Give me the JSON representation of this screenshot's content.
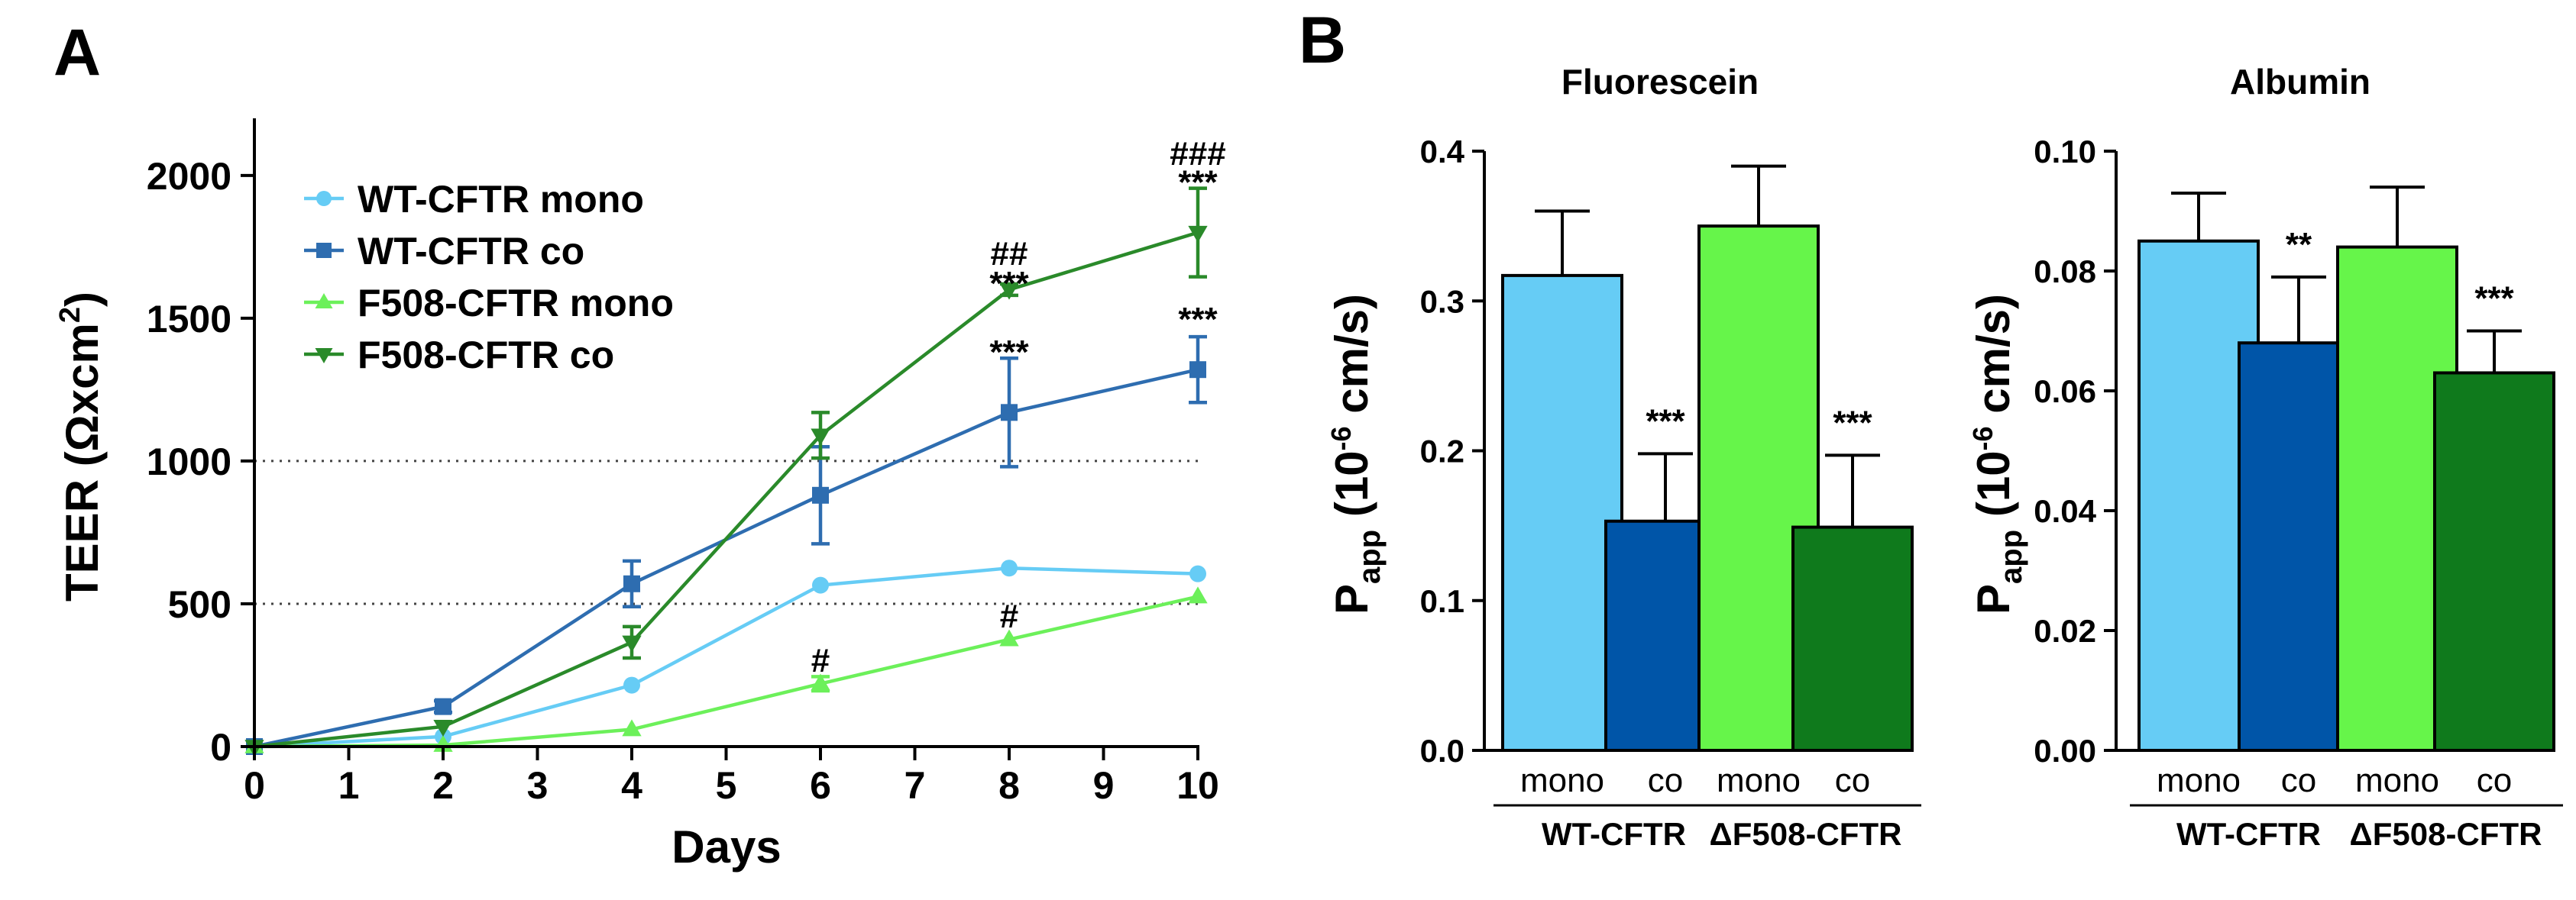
{
  "panels": {
    "a": "A",
    "b": "B"
  },
  "chart_data": [
    {
      "type": "line",
      "panel": "A",
      "xlabel": "Days",
      "ylabel_main": "TEER (",
      "ylabel_unit": "Ωxcm",
      "ylabel_sup": "2",
      "ylabel_close": ")",
      "xlim": [
        0,
        10
      ],
      "ylim": [
        0,
        2200
      ],
      "xticks": [
        "0",
        "1",
        "2",
        "3",
        "4",
        "5",
        "6",
        "7",
        "8",
        "9",
        "10"
      ],
      "yticks": [
        "0",
        "500",
        "1000",
        "1500",
        "2000"
      ],
      "reference_lines": [
        500,
        1000
      ],
      "x": [
        0,
        2,
        4,
        6,
        8,
        10
      ],
      "series": [
        {
          "name": "WT-CFTR mono",
          "color": "#66ccf5",
          "marker": "circle",
          "values": [
            0,
            35,
            215,
            565,
            625,
            605
          ],
          "errors": [
            0,
            0,
            0,
            0,
            0,
            0
          ]
        },
        {
          "name": "WT-CFTR co",
          "color": "#2e6db0",
          "marker": "square",
          "values": [
            0,
            140,
            570,
            880,
            1170,
            1320
          ],
          "errors": [
            0,
            20,
            80,
            170,
            190,
            115
          ]
        },
        {
          "name": "F508-CFTR mono",
          "color": "#6cf05a",
          "marker": "triangle-up",
          "values": [
            0,
            5,
            60,
            220,
            375,
            525
          ],
          "errors": [
            0,
            0,
            0,
            25,
            0,
            0
          ]
        },
        {
          "name": "F508-CFTR co",
          "color": "#2a8a2a",
          "marker": "triangle-down",
          "values": [
            0,
            70,
            365,
            1090,
            1600,
            1800
          ],
          "errors": [
            0,
            0,
            55,
            80,
            20,
            155
          ]
        }
      ],
      "annotations": [
        {
          "text": "###",
          "x": 10,
          "y": 2080
        },
        {
          "text": "***",
          "x": 10,
          "y": 1980
        },
        {
          "text": "***",
          "x": 10,
          "y": 1500
        },
        {
          "text": "##",
          "x": 8,
          "y": 1730
        },
        {
          "text": "***",
          "x": 8,
          "y": 1625
        },
        {
          "text": "***",
          "x": 8,
          "y": 1385
        },
        {
          "text": "#",
          "x": 8,
          "y": 460
        },
        {
          "text": "#",
          "x": 6,
          "y": 305
        }
      ]
    },
    {
      "type": "bar",
      "panel": "B",
      "title": "Fluorescein",
      "ylabel": "P",
      "ylabel_sub": "app",
      "ylabel_mid": " (10",
      "ylabel_sup": "-6",
      "ylabel_end": " cm/s)",
      "ylim": [
        0,
        0.4
      ],
      "yticks": [
        "0.0",
        "0.1",
        "0.2",
        "0.3",
        "0.4"
      ],
      "categories": [
        "mono",
        "co",
        "mono",
        "co"
      ],
      "groups": [
        "WT-CFTR",
        "ΔF508-CFTR"
      ],
      "colors": [
        "#66ccf5",
        "#0055a8",
        "#66f54a",
        "#0f7a1c"
      ],
      "values": [
        0.317,
        0.153,
        0.35,
        0.149
      ],
      "errors": [
        0.043,
        0.045,
        0.04,
        0.048
      ],
      "significance": [
        "",
        "***",
        "",
        "***"
      ]
    },
    {
      "type": "bar",
      "panel": "B",
      "title": "Albumin",
      "ylabel": "P",
      "ylabel_sub": "app",
      "ylabel_mid": " (10",
      "ylabel_sup": "-6",
      "ylabel_end": " cm/s)",
      "ylim": [
        0,
        0.1
      ],
      "yticks": [
        "0.00",
        "0.02",
        "0.04",
        "0.06",
        "0.08",
        "0.10"
      ],
      "categories": [
        "mono",
        "co",
        "mono",
        "co"
      ],
      "groups": [
        "WT-CFTR",
        "ΔF508-CFTR"
      ],
      "colors": [
        "#66ccf5",
        "#0055a8",
        "#66f54a",
        "#0f7a1c"
      ],
      "values": [
        0.085,
        0.068,
        0.084,
        0.063
      ],
      "errors": [
        0.008,
        0.011,
        0.01,
        0.007
      ],
      "significance": [
        "",
        "**",
        "",
        "***"
      ]
    }
  ]
}
